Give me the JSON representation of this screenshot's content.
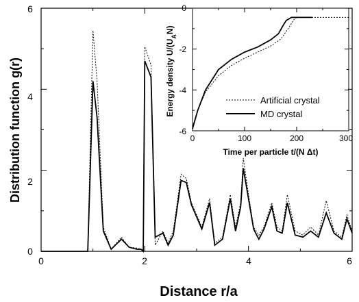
{
  "chart_data": [
    {
      "type": "line",
      "xlabel": "Distance r/a",
      "ylabel": "Distribution function g(r)",
      "xlim": [
        0,
        6
      ],
      "ylim": [
        0,
        6
      ],
      "xticks": [
        "0",
        "2",
        "4",
        "6"
      ],
      "yticks": [
        "0",
        "2",
        "4",
        "6"
      ],
      "series": [
        {
          "style": "dotted",
          "x": [
            0.0,
            0.9,
            1.0,
            1.08,
            1.2,
            1.35,
            1.55,
            1.7,
            1.85,
            1.93,
            1.97,
            2.0,
            2.12,
            2.2,
            2.35,
            2.45,
            2.55,
            2.7,
            2.8,
            2.9,
            3.1,
            3.25,
            3.35,
            3.5,
            3.65,
            3.75,
            3.85,
            3.9,
            4.0,
            4.1,
            4.2,
            4.3,
            4.45,
            4.55,
            4.65,
            4.75,
            4.9,
            5.05,
            5.2,
            5.35,
            5.5,
            5.65,
            5.8,
            5.9,
            6.0
          ],
          "y": [
            0.0,
            0.0,
            5.45,
            4.2,
            0.6,
            0.05,
            0.35,
            0.1,
            0.08,
            0.05,
            0.0,
            5.05,
            4.6,
            0.15,
            0.5,
            0.2,
            0.5,
            1.9,
            1.8,
            1.2,
            0.6,
            1.3,
            0.2,
            0.35,
            1.4,
            0.6,
            1.2,
            2.3,
            1.4,
            0.6,
            0.4,
            0.6,
            1.2,
            0.6,
            0.5,
            1.4,
            0.5,
            0.4,
            0.6,
            0.4,
            1.25,
            0.5,
            0.35,
            0.9,
            0.5
          ]
        },
        {
          "style": "solid",
          "x": [
            0.0,
            0.9,
            1.0,
            1.08,
            1.2,
            1.35,
            1.55,
            1.7,
            1.85,
            1.93,
            1.97,
            2.0,
            2.12,
            2.2,
            2.35,
            2.45,
            2.55,
            2.7,
            2.8,
            2.9,
            3.1,
            3.25,
            3.35,
            3.5,
            3.65,
            3.75,
            3.85,
            3.9,
            4.0,
            4.1,
            4.2,
            4.3,
            4.45,
            4.55,
            4.65,
            4.75,
            4.9,
            5.05,
            5.2,
            5.35,
            5.5,
            5.65,
            5.8,
            5.9,
            6.0
          ],
          "y": [
            0.0,
            0.0,
            4.2,
            3.3,
            0.5,
            0.05,
            0.3,
            0.1,
            0.05,
            0.05,
            0.0,
            4.7,
            4.3,
            0.35,
            0.45,
            0.15,
            0.4,
            1.75,
            1.7,
            1.15,
            0.55,
            1.2,
            0.15,
            0.3,
            1.3,
            0.5,
            1.1,
            2.05,
            1.3,
            0.55,
            0.3,
            0.55,
            1.1,
            0.5,
            0.45,
            1.2,
            0.4,
            0.35,
            0.5,
            0.35,
            0.95,
            0.45,
            0.3,
            0.8,
            0.45
          ]
        }
      ]
    },
    {
      "type": "line",
      "xlabel": "Time per particle t/(N Δt)",
      "ylabel": "Energy density U/(U",
      "ylabel_sub": "A",
      "ylabel_end": "N)",
      "xlim": [
        0,
        300
      ],
      "ylim": [
        -6,
        0
      ],
      "xticks": [
        "0",
        "100",
        "200",
        "300"
      ],
      "yticks": [
        "0",
        "-2",
        "-4",
        "-6"
      ],
      "legend": "center-right",
      "series": [
        {
          "name": "Artificial crystal",
          "style": "dotted",
          "x": [
            0,
            10,
            25,
            50,
            75,
            100,
            125,
            150,
            170,
            185,
            195,
            200,
            230,
            300
          ],
          "y": [
            -5.8,
            -5.0,
            -4.1,
            -3.3,
            -2.8,
            -2.45,
            -2.15,
            -1.85,
            -1.5,
            -0.95,
            -0.55,
            -0.45,
            -0.45,
            -0.45
          ]
        },
        {
          "name": "MD crystal",
          "style": "solid",
          "x": [
            0,
            10,
            25,
            50,
            75,
            100,
            125,
            150,
            165,
            175,
            180,
            190,
            200,
            215,
            230
          ],
          "y": [
            -5.9,
            -5.0,
            -4.0,
            -3.0,
            -2.5,
            -2.15,
            -1.9,
            -1.55,
            -1.25,
            -0.8,
            -0.6,
            -0.45,
            -0.45,
            -0.45,
            -0.45
          ]
        }
      ]
    }
  ]
}
